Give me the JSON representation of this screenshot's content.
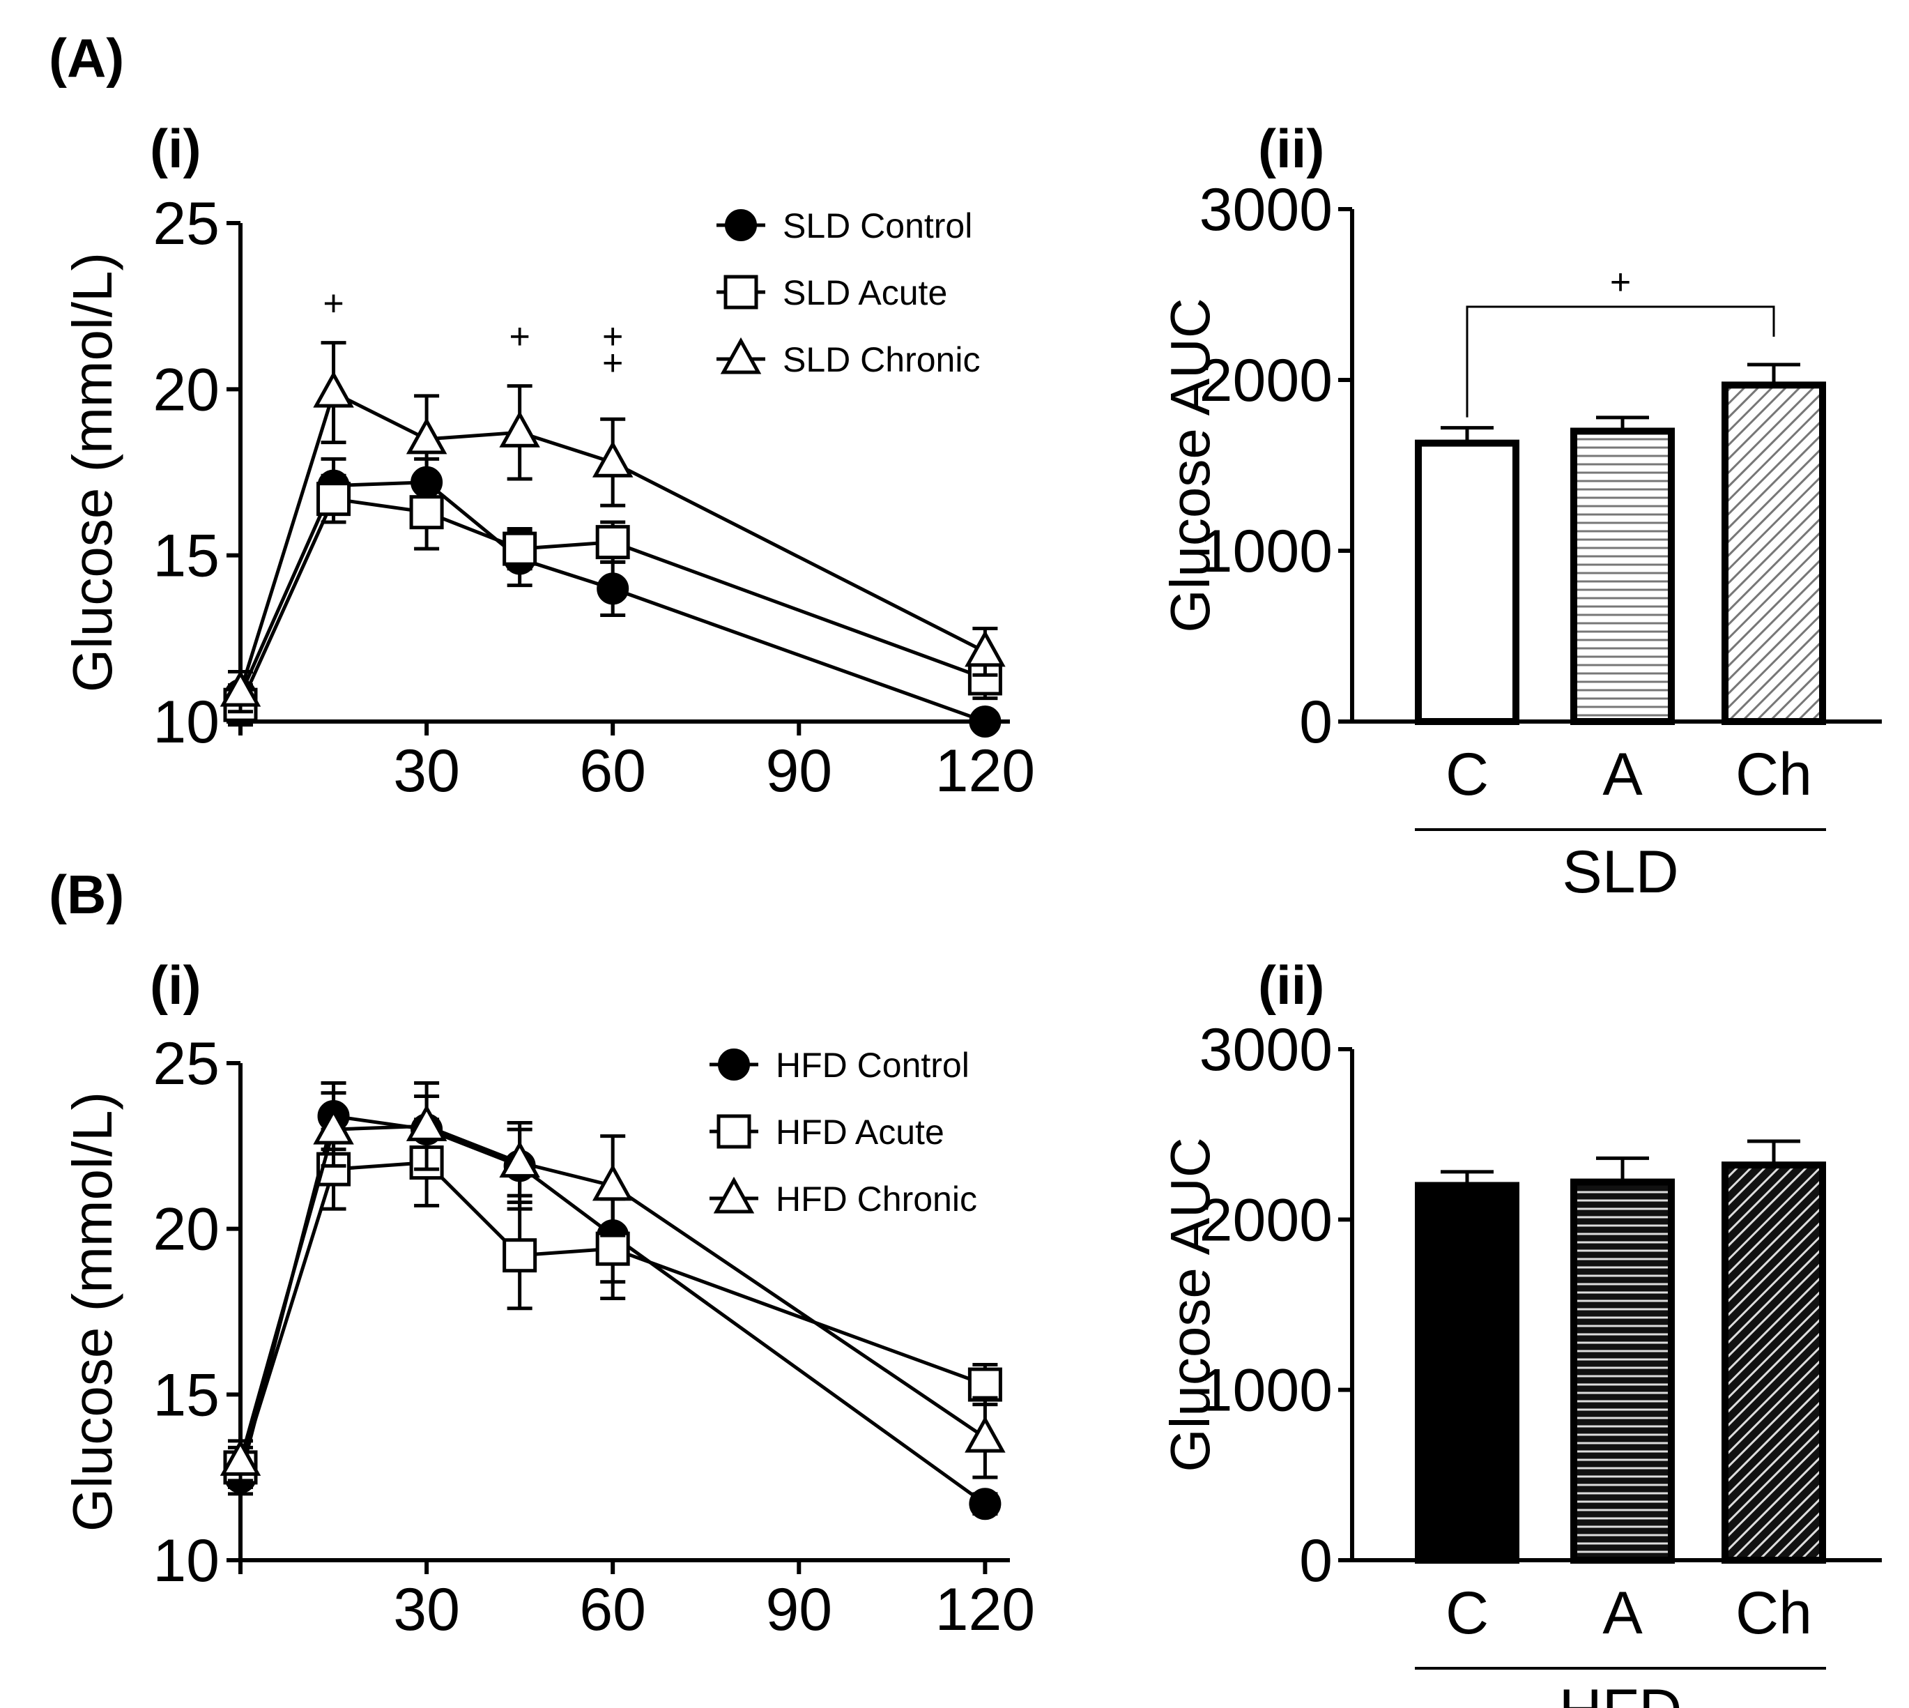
{
  "panels": [
    {
      "id": "A",
      "label": "(A)",
      "line": {
        "sublabel": "(i)",
        "chart_data": {
          "type": "line",
          "ylabel": "Glucose (mmol/L)",
          "xlabel": "",
          "x": [
            0,
            15,
            30,
            45,
            60,
            120
          ],
          "xticks": [
            30,
            60,
            90,
            120
          ],
          "xlim": [
            0,
            124
          ],
          "yticks": [
            10,
            15,
            20,
            25
          ],
          "ylim": [
            10,
            25
          ],
          "series": [
            {
              "name": "SLD Control",
              "marker": "filled-circle",
              "values": [
                10.8,
                17.1,
                17.2,
                14.9,
                14.0,
                10.0
              ],
              "errors": [
                0.7,
                0.8,
                0.7,
                0.8,
                0.8,
                0.2
              ]
            },
            {
              "name": "SLD Acute",
              "marker": "open-square",
              "values": [
                10.5,
                16.7,
                16.3,
                15.2,
                15.4,
                11.3
              ],
              "errors": [
                0.6,
                0.7,
                1.1,
                0.6,
                0.6,
                0.6
              ]
            },
            {
              "name": "SLD Chronic",
              "marker": "open-triangle",
              "values": [
                10.9,
                19.9,
                18.5,
                18.7,
                17.8,
                12.1
              ],
              "errors": [
                0.6,
                1.5,
                1.3,
                1.4,
                1.3,
                0.7
              ]
            }
          ],
          "annotations": [
            {
              "x": 15,
              "y": 22.6,
              "text": "+"
            },
            {
              "x": 45,
              "y": 21.6,
              "text": "+"
            },
            {
              "x": 60,
              "y": 21.6,
              "text": "+"
            },
            {
              "x": 60,
              "y": 20.8,
              "text": "+"
            }
          ]
        }
      },
      "bar": {
        "sublabel": "(ii)",
        "group_label": "SLD",
        "chart_data": {
          "type": "bar",
          "ylabel": "Glucose AUC",
          "categories": [
            "C",
            "A",
            "Ch"
          ],
          "values": [
            1630,
            1700,
            1970
          ],
          "errors": [
            90,
            80,
            120
          ],
          "fills": [
            "white",
            "h-stripes",
            "diag-stripes"
          ],
          "yticks": [
            0,
            1000,
            2000,
            3000
          ],
          "ylim": [
            0,
            3000
          ],
          "significance": {
            "from": 0,
            "to": 2,
            "text": "+"
          }
        }
      }
    },
    {
      "id": "B",
      "label": "(B)",
      "line": {
        "sublabel": "(i)",
        "chart_data": {
          "type": "line",
          "ylabel": "Glucose (mmol/L)",
          "xlabel": "",
          "x": [
            0,
            15,
            30,
            45,
            60,
            120
          ],
          "xticks": [
            30,
            60,
            90,
            120
          ],
          "xlim": [
            0,
            124
          ],
          "yticks": [
            10,
            15,
            20,
            25
          ],
          "ylim": [
            10,
            25
          ],
          "series": [
            {
              "name": "HFD Control",
              "marker": "filled-circle",
              "values": [
                12.5,
                23.4,
                23.0,
                21.9,
                19.8,
                11.7
              ],
              "errors": [
                0.5,
                1.0,
                1.0,
                1.3,
                1.4,
                0.3
              ]
            },
            {
              "name": "HFD Acute",
              "marker": "open-square",
              "values": [
                12.8,
                21.8,
                22.0,
                19.2,
                19.4,
                15.3
              ],
              "errors": [
                0.6,
                1.2,
                1.3,
                1.6,
                1.5,
                0.6
              ]
            },
            {
              "name": "HFD Chronic",
              "marker": "open-triangle",
              "values": [
                13.0,
                23.0,
                23.1,
                22.0,
                21.3,
                13.7
              ],
              "errors": [
                0.6,
                1.1,
                1.3,
                1.0,
                1.5,
                1.2
              ]
            }
          ],
          "annotations": []
        }
      },
      "bar": {
        "sublabel": "(ii)",
        "group_label": "HFD",
        "chart_data": {
          "type": "bar",
          "ylabel": "Glucose AUC",
          "categories": [
            "C",
            "A",
            "Ch"
          ],
          "values": [
            2200,
            2220,
            2320
          ],
          "errors": [
            80,
            140,
            140
          ],
          "fills": [
            "black",
            "h-stripes-dark",
            "diag-stripes-dark"
          ],
          "yticks": [
            0,
            1000,
            2000,
            3000
          ],
          "ylim": [
            0,
            3000
          ],
          "significance": null
        }
      }
    }
  ]
}
